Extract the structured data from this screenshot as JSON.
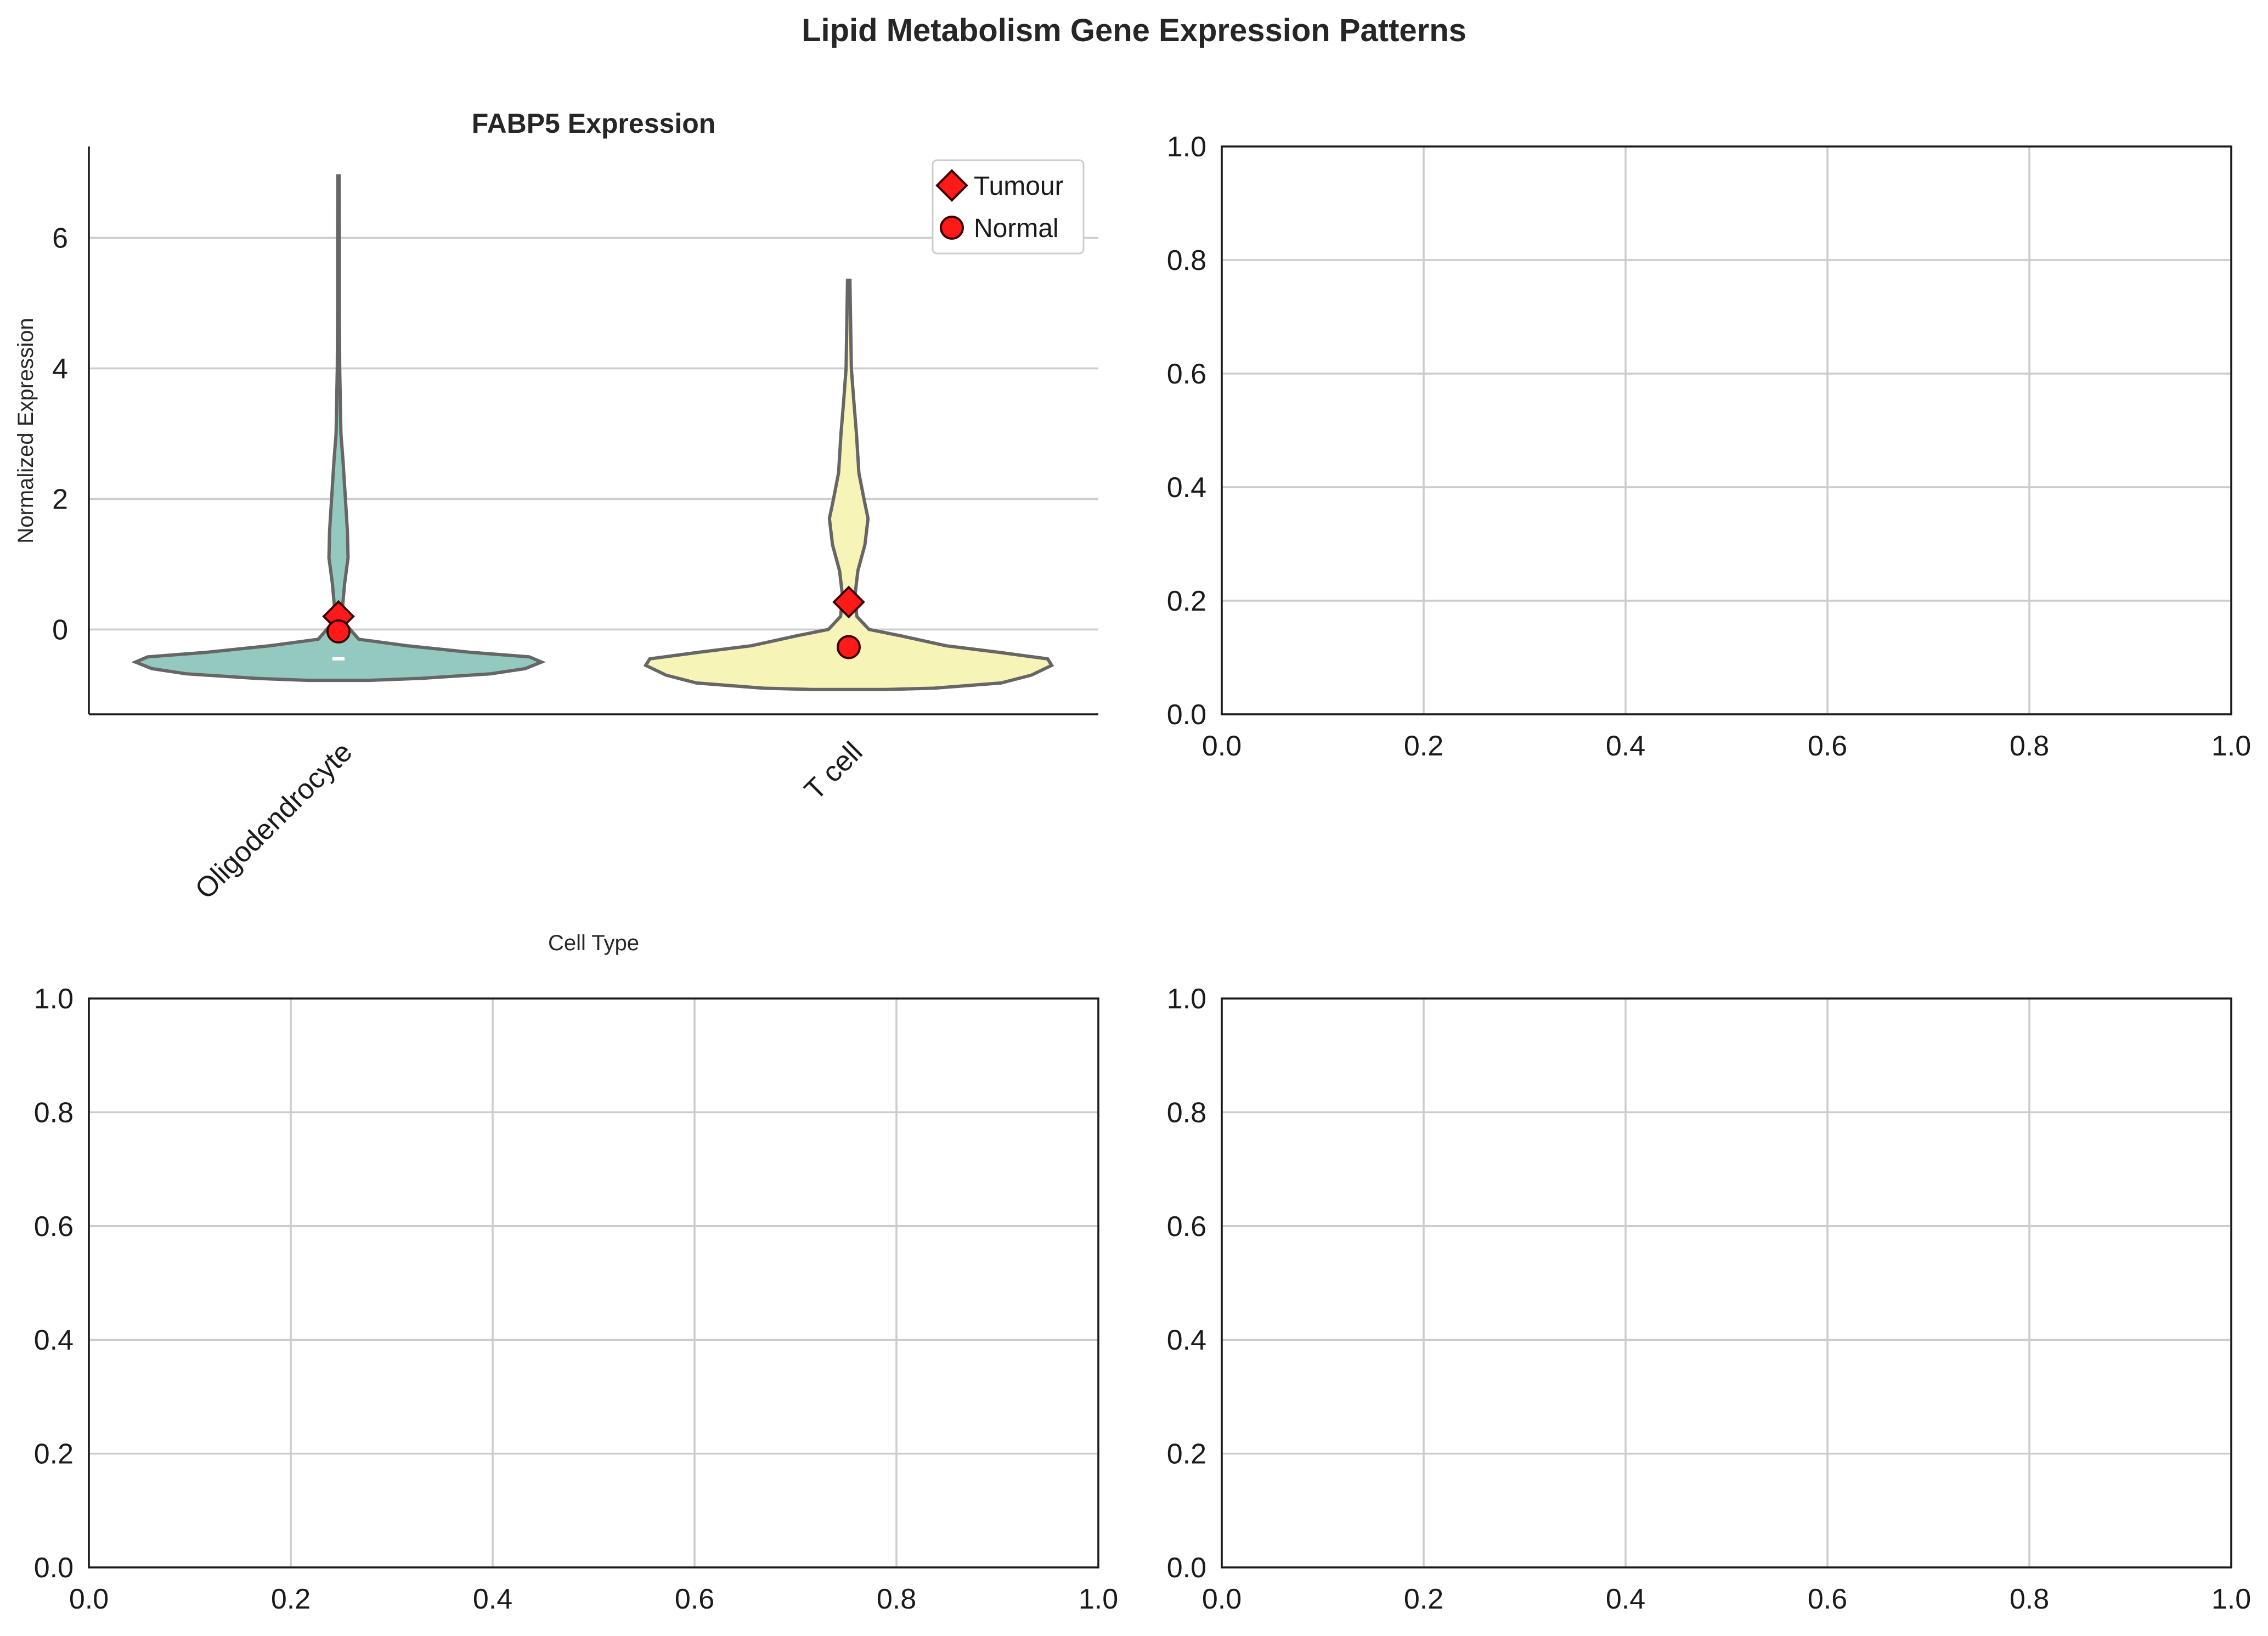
{
  "figure_title": "Lipid Metabolism Gene Expression Patterns",
  "colors": {
    "violin_Oligodendrocyte": "#93c9bf",
    "violin_T_cell": "#f7f4b8",
    "violin_edge": "#666666",
    "marker_fill": "#ff1a1a",
    "marker_edge": "#3a0000"
  },
  "chart_data": [
    {
      "type": "violin",
      "title": "FABP5 Expression",
      "xlabel": "Cell Type",
      "ylabel": "Normalized Expression",
      "categories": [
        "Oligodendrocyte",
        "T cell"
      ],
      "ylim": [
        -1.3,
        7.4
      ],
      "yticks": [
        0,
        2,
        4,
        6
      ],
      "grid": "horizontal",
      "legend": {
        "placement": "upper right",
        "entries": [
          {
            "label": "Tumour",
            "marker": "diamond"
          },
          {
            "label": "Normal",
            "marker": "circle"
          }
        ]
      },
      "series": [
        {
          "name": "Tumour",
          "marker": "diamond",
          "values": [
            0.2,
            0.42
          ]
        },
        {
          "name": "Normal",
          "marker": "circle",
          "values": [
            -0.03,
            -0.27
          ]
        }
      ],
      "medians": [
        -0.45,
        null
      ],
      "violins": [
        {
          "category": "Oligodendrocyte",
          "profile": [
            [
              -0.78,
              0.15
            ],
            [
              -0.75,
              0.4
            ],
            [
              -0.68,
              0.75
            ],
            [
              -0.6,
              0.92
            ],
            [
              -0.5,
              1.0
            ],
            [
              -0.42,
              0.94
            ],
            [
              -0.35,
              0.65
            ],
            [
              -0.25,
              0.34
            ],
            [
              -0.15,
              0.1
            ],
            [
              0.1,
              0.03
            ],
            [
              0.35,
              0.02
            ],
            [
              0.7,
              0.03
            ],
            [
              1.1,
              0.047
            ],
            [
              1.5,
              0.044
            ],
            [
              2.0,
              0.034
            ],
            [
              2.6,
              0.022
            ],
            [
              3.0,
              0.012
            ],
            [
              4.0,
              0.006
            ],
            [
              5.0,
              0.004
            ],
            [
              6.0,
              0.004
            ],
            [
              6.95,
              0.003
            ]
          ]
        },
        {
          "category": "T cell",
          "profile": [
            [
              -0.92,
              0.18
            ],
            [
              -0.9,
              0.42
            ],
            [
              -0.82,
              0.75
            ],
            [
              -0.7,
              0.9
            ],
            [
              -0.55,
              1.0
            ],
            [
              -0.45,
              0.98
            ],
            [
              -0.35,
              0.74
            ],
            [
              -0.25,
              0.48
            ],
            [
              -0.1,
              0.26
            ],
            [
              0.0,
              0.1
            ],
            [
              0.2,
              0.04
            ],
            [
              0.5,
              0.03
            ],
            [
              0.9,
              0.045
            ],
            [
              1.3,
              0.08
            ],
            [
              1.7,
              0.095
            ],
            [
              2.0,
              0.075
            ],
            [
              2.4,
              0.05
            ],
            [
              3.0,
              0.038
            ],
            [
              3.5,
              0.025
            ],
            [
              4.0,
              0.013
            ],
            [
              5.35,
              0.006
            ]
          ]
        }
      ]
    },
    {
      "type": "scatter",
      "title": "",
      "xlim": [
        0,
        1
      ],
      "ylim": [
        0,
        1
      ],
      "xticks": [
        0.0,
        0.2,
        0.4,
        0.6,
        0.8,
        1.0
      ],
      "yticks": [
        0.0,
        0.2,
        0.4,
        0.6,
        0.8,
        1.0
      ],
      "xticklabels": [
        "0.0",
        "0.2",
        "0.4",
        "0.6",
        "0.8",
        "1.0"
      ],
      "yticklabels": [
        "0.0",
        "0.2",
        "0.4",
        "0.6",
        "0.8",
        "1.0"
      ],
      "grid": "both",
      "series": []
    },
    {
      "type": "scatter",
      "title": "",
      "xlim": [
        0,
        1
      ],
      "ylim": [
        0,
        1
      ],
      "xticks": [
        0.0,
        0.2,
        0.4,
        0.6,
        0.8,
        1.0
      ],
      "yticks": [
        0.0,
        0.2,
        0.4,
        0.6,
        0.8,
        1.0
      ],
      "xticklabels": [
        "0.0",
        "0.2",
        "0.4",
        "0.6",
        "0.8",
        "1.0"
      ],
      "yticklabels": [
        "0.0",
        "0.2",
        "0.4",
        "0.6",
        "0.8",
        "1.0"
      ],
      "grid": "both",
      "series": []
    },
    {
      "type": "scatter",
      "title": "",
      "xlim": [
        0,
        1
      ],
      "ylim": [
        0,
        1
      ],
      "xticks": [
        0.0,
        0.2,
        0.4,
        0.6,
        0.8,
        1.0
      ],
      "yticks": [
        0.0,
        0.2,
        0.4,
        0.6,
        0.8,
        1.0
      ],
      "xticklabels": [
        "0.0",
        "0.2",
        "0.4",
        "0.6",
        "0.8",
        "1.0"
      ],
      "yticklabels": [
        "0.0",
        "0.2",
        "0.4",
        "0.6",
        "0.8",
        "1.0"
      ],
      "grid": "both",
      "series": []
    }
  ]
}
